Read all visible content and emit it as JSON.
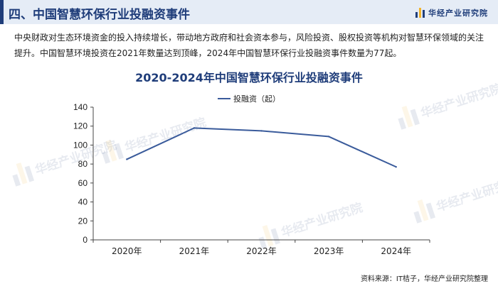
{
  "header": {
    "title": "四、中国智慧环保行业投融资事件",
    "brand": "华经产业研究院"
  },
  "description": "中央财政对生态环境资金的投入持续增长，带动地方政府和社会资本参与，风险投资、股权投资等机构对智慧环保领域的关注提升。中国智慧环境投资在2021年数量达到顶峰，2024年中国智慧环保行业投融资事件数量为77起。",
  "watermark": "华经产业研究院",
  "source": "资料来源：IT桔子，华经产业研究院整理",
  "colors": {
    "brand": "#1f3d7a",
    "accent": "#f2b32a",
    "series": "#3a5b9b",
    "header_bg": "#e5ecf6"
  },
  "chart_data": {
    "type": "line",
    "title": "2020-2024年中国智慧环保行业投融资事件",
    "categories": [
      "2020年",
      "2021年",
      "2022年",
      "2023年",
      "2024年"
    ],
    "series": [
      {
        "name": "投融资（起）",
        "values": [
          85,
          118,
          115,
          109,
          77
        ]
      }
    ],
    "ylim": [
      0,
      140
    ],
    "yticks": [
      0,
      20,
      40,
      60,
      80,
      100,
      120,
      140
    ],
    "grid": false,
    "legend": "top"
  }
}
